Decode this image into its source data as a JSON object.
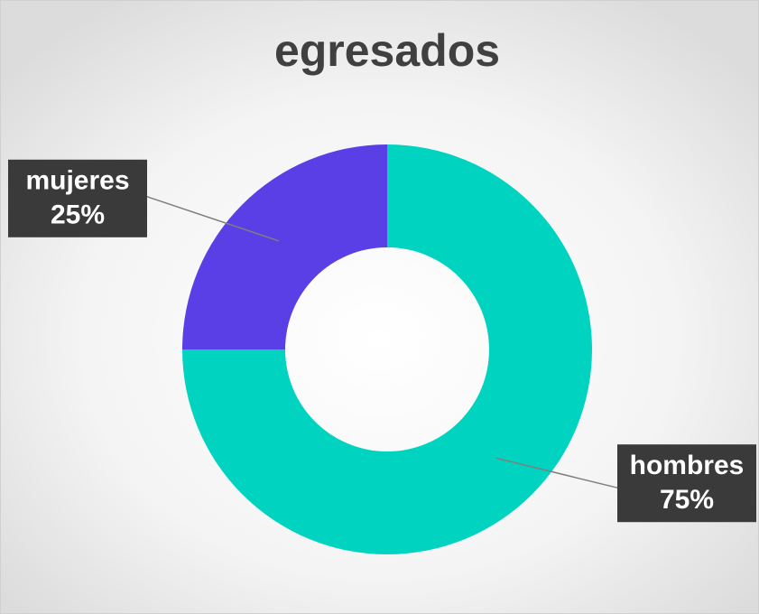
{
  "chart_data": {
    "type": "donut",
    "title": "egresados",
    "categories": [
      "hombres",
      "mujeres"
    ],
    "values": [
      75,
      25
    ],
    "value_labels": [
      "75%",
      "25%"
    ],
    "colors": [
      "#00d4c0",
      "#5b3fe6"
    ]
  }
}
